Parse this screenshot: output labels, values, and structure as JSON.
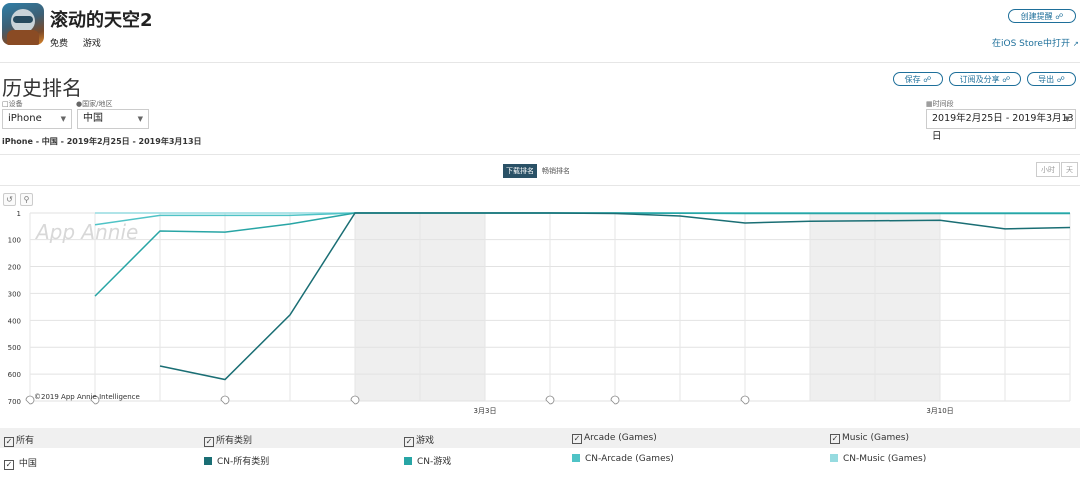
{
  "app": {
    "title": "滚动的天空2",
    "price": "免费",
    "category": "游戏",
    "create_alert_label": "创建提醒",
    "open_store_label": "在iOS Store中打开"
  },
  "history": {
    "title": "历史排名",
    "save_label": "保存",
    "subscribe_share_label": "订阅及分享",
    "export_label": "导出"
  },
  "filters": {
    "device_label": "设备",
    "device_value": "iPhone",
    "country_label": "国家/地区",
    "country_value": "中国",
    "period_label": "时间段",
    "period_value": "2019年2月25日 - 2019年3月13日"
  },
  "summary": "iPhone - 中国 - 2019年2月25日 - 2019年3月13日",
  "tabs": {
    "download_label": "下载排名",
    "revenue_label": "畅销排名",
    "active": "download"
  },
  "granularity": {
    "hour_label": "小时",
    "day_label": "天"
  },
  "tools": {
    "reset_icon": "undo-icon",
    "zoom_icon": "zoom-icon"
  },
  "watermark": "App Annie",
  "copyright": "©2019 App Annie Intelligence",
  "colors": {
    "accent": "#1e6f9a",
    "series_all": "#1a6e74",
    "series_games": "#28a5a5",
    "series_arcade": "#4fc3c6",
    "series_music": "#96dbe0",
    "weekend_band": "#efefef"
  },
  "legend": {
    "all_label": "所有",
    "china_label": "中国",
    "all_categories_label": "所有类别",
    "games_label": "游戏",
    "arcade_label": "Arcade (Games)",
    "music_label": "Music (Games)",
    "series_labels": [
      "CN-所有类别",
      "CN-游戏",
      "CN-Arcade (Games)",
      "CN-Music (Games)"
    ]
  },
  "chart_data": {
    "type": "line",
    "x": [
      "2019-02-25",
      "2019-02-26",
      "2019-02-27",
      "2019-02-28",
      "2019-03-01",
      "2019-03-02",
      "2019-03-03",
      "2019-03-04",
      "2019-03-05",
      "2019-03-06",
      "2019-03-07",
      "2019-03-08",
      "2019-03-09",
      "2019-03-10",
      "2019-03-11",
      "2019-03-12",
      "2019-03-13"
    ],
    "x_tick_labels": [
      {
        "index": 6,
        "label": "3月3日"
      },
      {
        "index": 13,
        "label": "3月10日"
      }
    ],
    "y_tick_labels": [
      "1",
      "100",
      "200",
      "300",
      "400",
      "500",
      "600",
      "700"
    ],
    "y_ticks": [
      1,
      100,
      200,
      300,
      400,
      500,
      600,
      700
    ],
    "ylim": [
      1,
      700
    ],
    "y_reversed": true,
    "grid": true,
    "weekend_bands": [
      [
        5,
        7
      ],
      [
        12,
        14
      ]
    ],
    "series": [
      {
        "name": "CN-所有类别",
        "values": [
          null,
          null,
          570,
          620,
          380,
          1,
          1,
          1,
          1,
          3,
          12,
          38,
          32,
          30,
          28,
          60,
          55
        ]
      },
      {
        "name": "CN-游戏",
        "values": [
          null,
          310,
          68,
          72,
          42,
          1,
          1,
          1,
          1,
          1,
          2,
          3,
          3,
          3,
          3,
          3,
          3
        ]
      },
      {
        "name": "CN-Arcade (Games)",
        "values": [
          null,
          45,
          10,
          10,
          10,
          1,
          1,
          1,
          1,
          1,
          1,
          1,
          1,
          1,
          1,
          1,
          1
        ]
      },
      {
        "name": "CN-Music (Games)",
        "values": [
          null,
          1,
          1,
          1,
          1,
          1,
          1,
          1,
          1,
          1,
          1,
          1,
          1,
          1,
          1,
          1,
          1
        ]
      }
    ]
  }
}
